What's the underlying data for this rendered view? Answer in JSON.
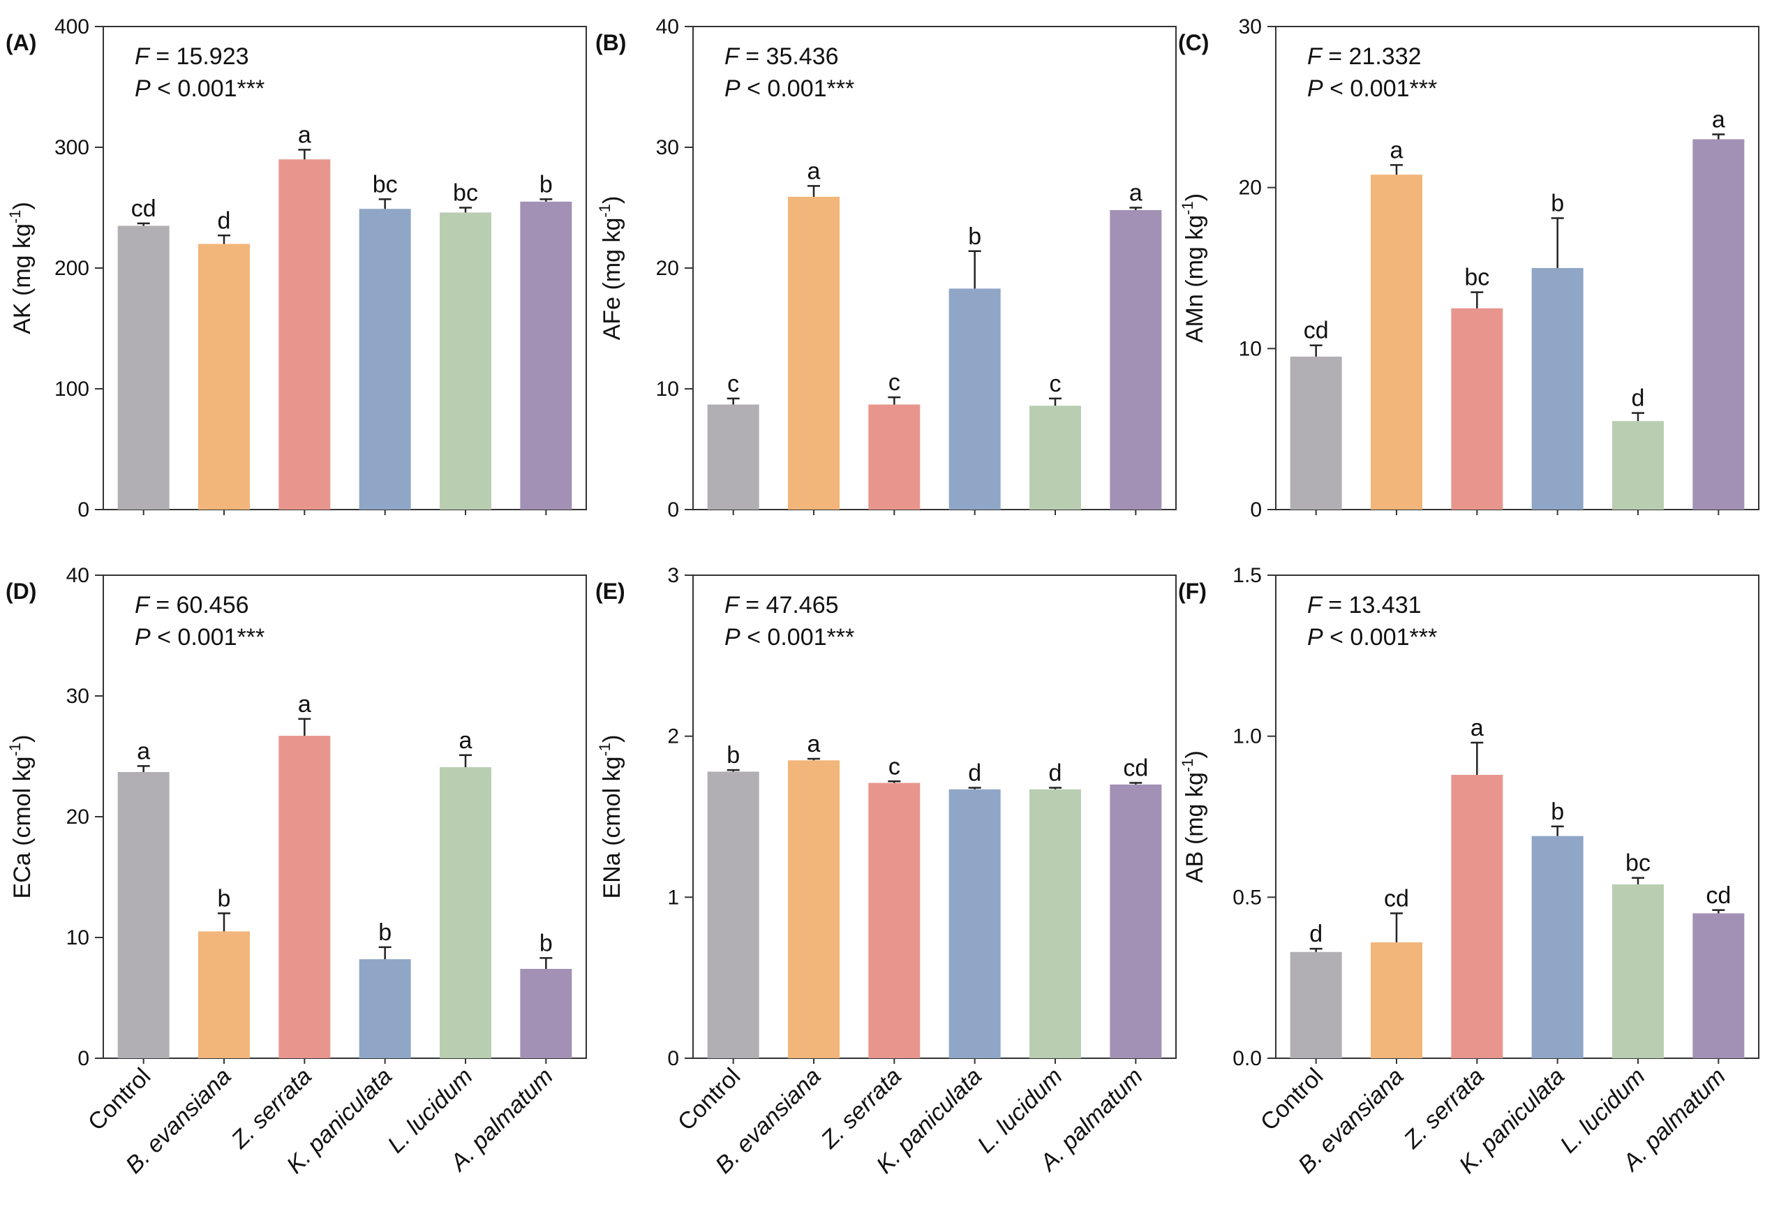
{
  "categories": [
    "Control",
    "B. evansiana",
    "Z. serrata",
    "K. paniculata",
    "L. lucidum",
    "A. palmatum"
  ],
  "colors": [
    "#b1afb4",
    "#f2b57a",
    "#e8968d",
    "#8fa6c7",
    "#b9ceb1",
    "#a291b5"
  ],
  "chart_data": [
    {
      "type": "bar",
      "panel": "(A)",
      "title": "",
      "ylabel_main": "AK (mg kg",
      "ylabel_sup": "-1",
      "ylabel_end": ")",
      "ylim": [
        0,
        400
      ],
      "yticks": [
        0,
        100,
        200,
        300,
        400
      ],
      "values": [
        235,
        220,
        290,
        249,
        246,
        255
      ],
      "errors": [
        2,
        7,
        8,
        8,
        4,
        2
      ],
      "letters": [
        "cd",
        "d",
        "a",
        "bc",
        "bc",
        "b"
      ],
      "stat_f_label": "F",
      "stat_f": " = 15.923",
      "stat_p_label": "P",
      "stat_p": " < 0.001***"
    },
    {
      "type": "bar",
      "panel": "(B)",
      "title": "",
      "ylabel_main": "AFe (mg kg",
      "ylabel_sup": "-1",
      "ylabel_end": ")",
      "ylim": [
        0,
        40
      ],
      "yticks": [
        0,
        10,
        20,
        30,
        40
      ],
      "values": [
        8.7,
        25.9,
        8.7,
        18.3,
        8.6,
        24.8
      ],
      "errors": [
        0.5,
        0.9,
        0.6,
        3.1,
        0.6,
        0.2
      ],
      "letters": [
        "c",
        "a",
        "c",
        "b",
        "c",
        "a"
      ],
      "stat_f_label": "F",
      "stat_f": " = 35.436",
      "stat_p_label": "P",
      "stat_p": " < 0.001***"
    },
    {
      "type": "bar",
      "panel": "(C)",
      "title": "",
      "ylabel_main": "AMn (mg kg",
      "ylabel_sup": "-1",
      "ylabel_end": ")",
      "ylim": [
        0,
        30
      ],
      "yticks": [
        0,
        10,
        20,
        30
      ],
      "values": [
        9.5,
        20.8,
        12.5,
        15.0,
        5.5,
        23.0
      ],
      "errors": [
        0.7,
        0.6,
        1.0,
        3.1,
        0.5,
        0.3
      ],
      "letters": [
        "cd",
        "a",
        "bc",
        "b",
        "d",
        "a"
      ],
      "stat_f_label": "F",
      "stat_f": " = 21.332",
      "stat_p_label": "P",
      "stat_p": " < 0.001***"
    },
    {
      "type": "bar",
      "panel": "(D)",
      "title": "",
      "ylabel_main": "ECa (cmol kg",
      "ylabel_sup": "-1",
      "ylabel_end": ")",
      "ylim": [
        0,
        40
      ],
      "yticks": [
        0,
        10,
        20,
        30,
        40
      ],
      "values": [
        23.7,
        10.5,
        26.7,
        8.2,
        24.1,
        7.4
      ],
      "errors": [
        0.5,
        1.5,
        1.4,
        1.0,
        1.0,
        0.9
      ],
      "letters": [
        "a",
        "b",
        "a",
        "b",
        "a",
        "b"
      ],
      "stat_f_label": "F",
      "stat_f": " = 60.456",
      "stat_p_label": "P",
      "stat_p": " < 0.001***"
    },
    {
      "type": "bar",
      "panel": "(E)",
      "title": "",
      "ylabel_main": "ENa (cmol kg",
      "ylabel_sup": "-1",
      "ylabel_end": ")",
      "ylim": [
        0,
        3
      ],
      "yticks": [
        0,
        1,
        2,
        3
      ],
      "values": [
        1.78,
        1.85,
        1.71,
        1.67,
        1.67,
        1.7
      ],
      "errors": [
        0.01,
        0.01,
        0.01,
        0.01,
        0.01,
        0.01
      ],
      "letters": [
        "b",
        "a",
        "c",
        "d",
        "d",
        "cd"
      ],
      "stat_f_label": "F",
      "stat_f": " = 47.465",
      "stat_p_label": "P",
      "stat_p": " < 0.001***"
    },
    {
      "type": "bar",
      "panel": "(F)",
      "title": "",
      "ylabel_main": "AB (mg kg",
      "ylabel_sup": "-1",
      "ylabel_end": ")",
      "ylim": [
        0,
        1.5
      ],
      "yticks": [
        "0.0",
        "0.5",
        "1.0",
        "1.5"
      ],
      "values": [
        0.33,
        0.36,
        0.88,
        0.69,
        0.54,
        0.45
      ],
      "errors": [
        0.01,
        0.09,
        0.1,
        0.03,
        0.02,
        0.01
      ],
      "letters": [
        "d",
        "cd",
        "a",
        "b",
        "bc",
        "cd"
      ],
      "stat_f_label": "F",
      "stat_f": " = 13.431",
      "stat_p_label": "P",
      "stat_p": " < 0.001***"
    }
  ]
}
